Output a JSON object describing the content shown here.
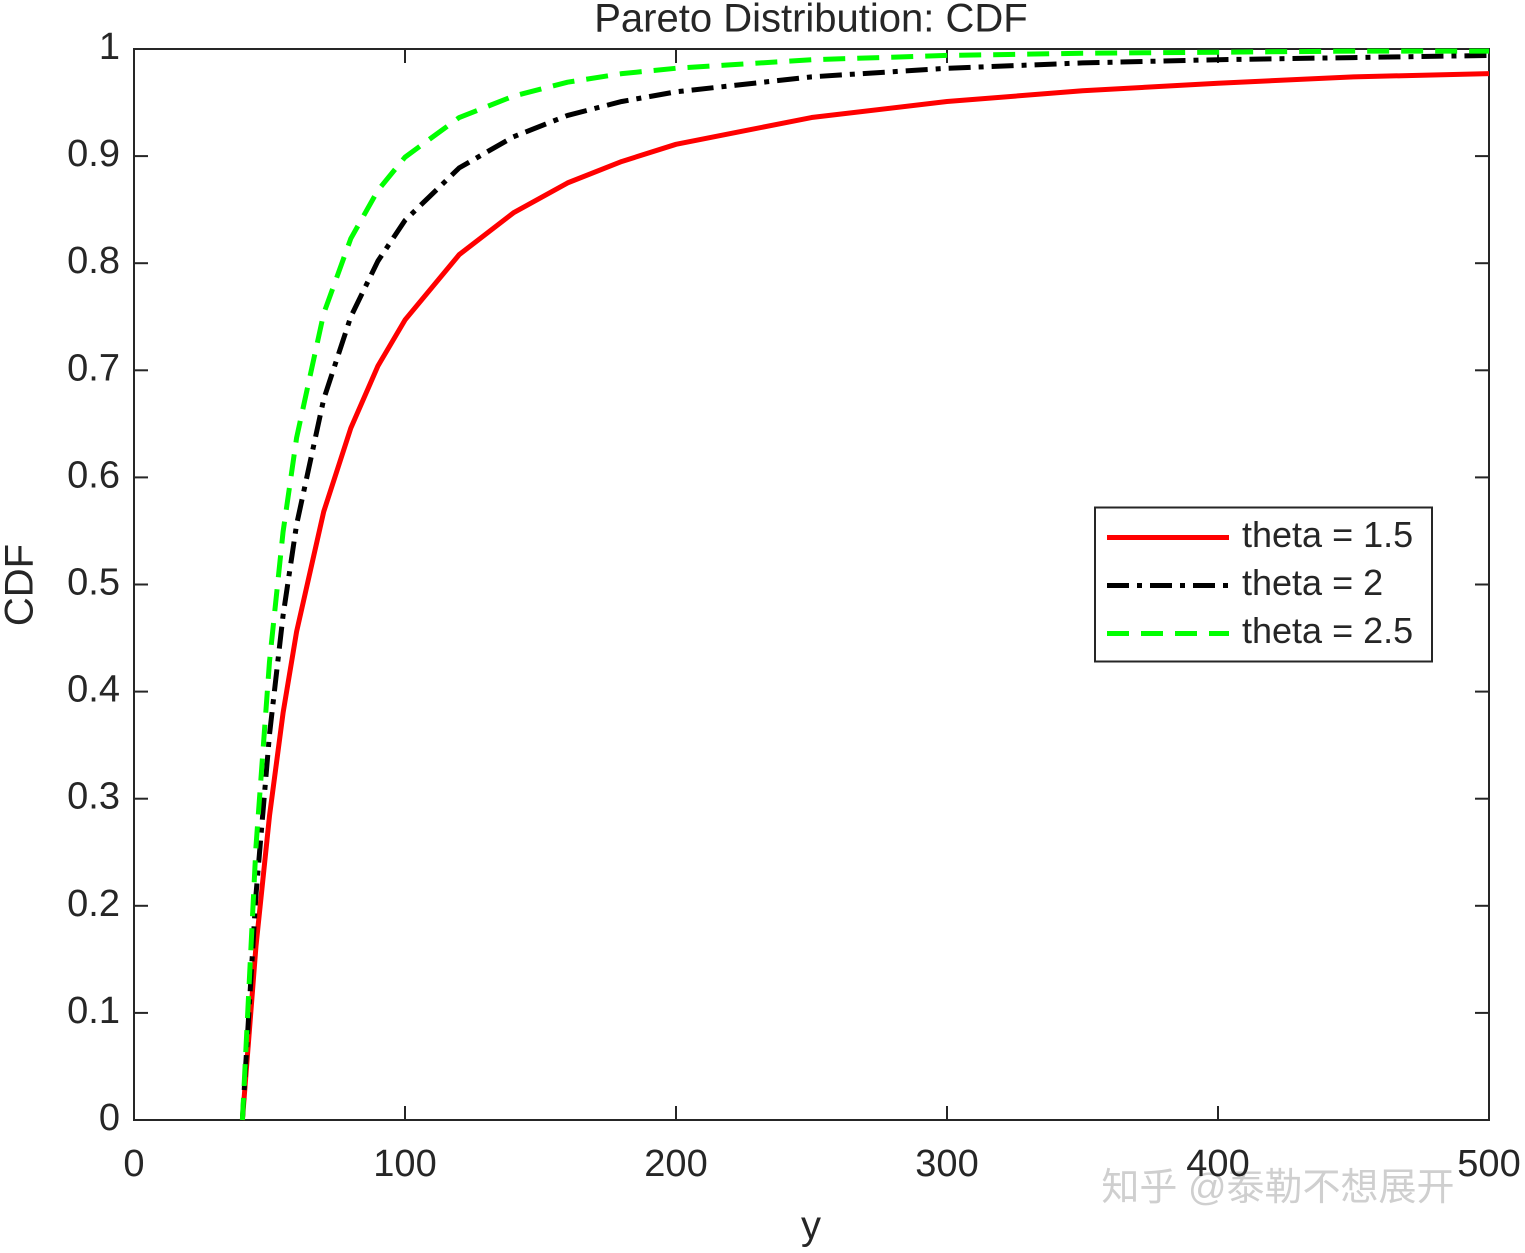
{
  "chart_data": {
    "type": "line",
    "title": "Pareto Distribution: CDF",
    "x_label": "y",
    "y_label": "CDF",
    "x": [
      40,
      45,
      50,
      55,
      60,
      70,
      80,
      90,
      100,
      120,
      140,
      160,
      180,
      200,
      250,
      300,
      350,
      400,
      450,
      500
    ],
    "series": [
      {
        "name": "theta = 1.5",
        "color": "#ff0000",
        "linestyle": "solid",
        "values": [
          0,
          0.162,
          0.284,
          0.38,
          0.456,
          0.568,
          0.646,
          0.704,
          0.747,
          0.808,
          0.847,
          0.875,
          0.895,
          0.911,
          0.936,
          0.951,
          0.961,
          0.968,
          0.974,
          0.977
        ]
      },
      {
        "name": "theta = 2",
        "color": "#000000",
        "linestyle": "dashdot",
        "values": [
          0,
          0.21,
          0.36,
          0.471,
          0.556,
          0.673,
          0.75,
          0.802,
          0.84,
          0.889,
          0.918,
          0.938,
          0.951,
          0.96,
          0.974,
          0.982,
          0.987,
          0.99,
          0.992,
          0.994
        ]
      },
      {
        "name": "theta = 2.5",
        "color": "#00ff00",
        "linestyle": "dashed",
        "values": [
          0,
          0.255,
          0.428,
          0.549,
          0.637,
          0.753,
          0.823,
          0.868,
          0.899,
          0.936,
          0.956,
          0.969,
          0.977,
          0.982,
          0.99,
          0.994,
          0.996,
          0.997,
          0.998,
          0.998
        ]
      }
    ],
    "xlim": [
      0,
      500
    ],
    "xticks": [
      0,
      100,
      200,
      300,
      400,
      500
    ],
    "ylim": [
      0,
      1
    ],
    "yticks": [
      0,
      0.1,
      0.2,
      0.3,
      0.4,
      0.5,
      0.6,
      0.7,
      0.8,
      0.9,
      1
    ],
    "grid": false,
    "legend": "east"
  },
  "watermark": "知乎 @泰勒不想展开"
}
